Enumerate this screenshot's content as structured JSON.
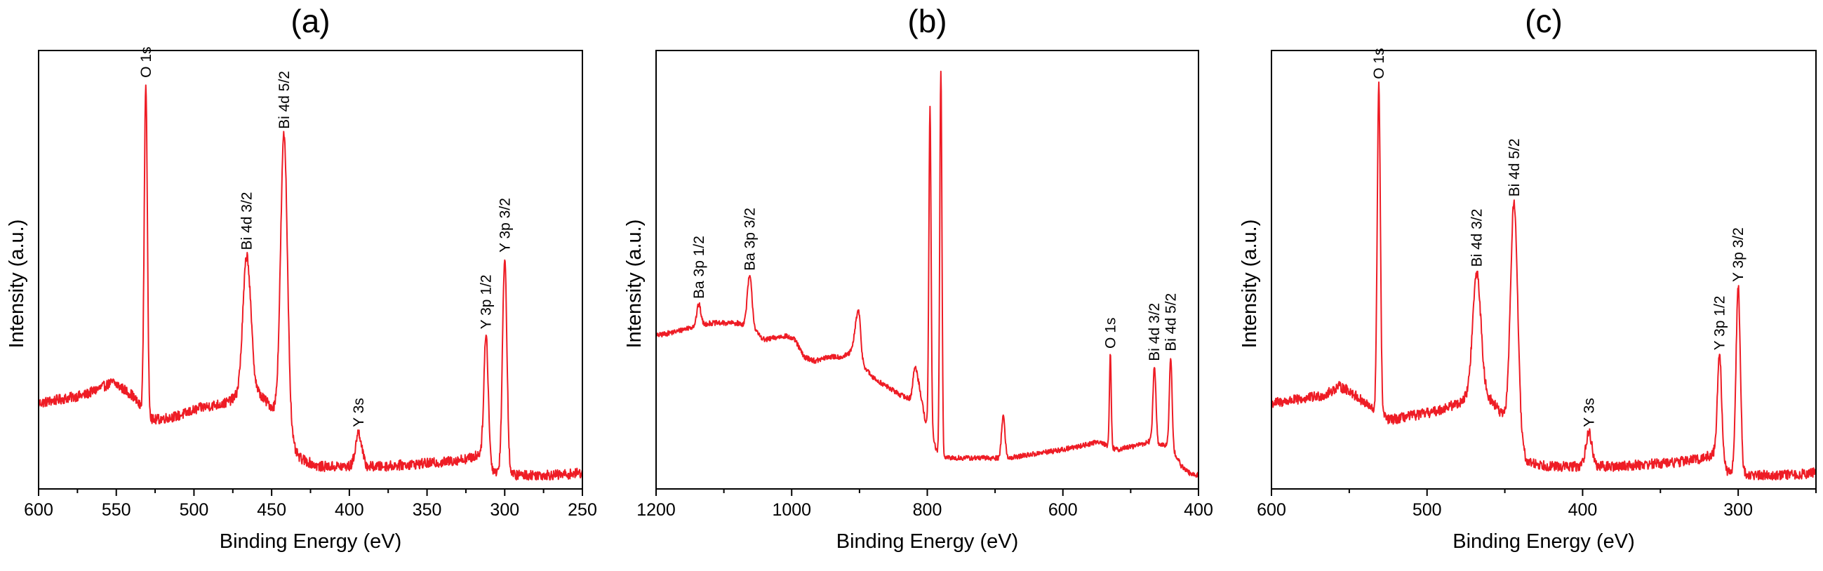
{
  "chart_data": [
    {
      "type": "line",
      "title": "(a)",
      "xlabel": "Binding Energy (eV)",
      "ylabel": "Intensity (a.u.)",
      "xlim": [
        600,
        250
      ],
      "ylim": [
        0,
        100
      ],
      "x_ticks": [
        "600",
        "550",
        "500",
        "450",
        "400",
        "350",
        "300",
        "250"
      ],
      "x_tick_values": [
        600,
        550,
        500,
        450,
        400,
        350,
        300,
        250
      ],
      "line_color": "#ee1c25",
      "baseline": [
        {
          "x": 600,
          "y": 18
        },
        {
          "x": 585,
          "y": 19
        },
        {
          "x": 570,
          "y": 20
        },
        {
          "x": 558,
          "y": 22
        },
        {
          "x": 552,
          "y": 23
        },
        {
          "x": 540,
          "y": 20
        },
        {
          "x": 534,
          "y": 17
        },
        {
          "x": 526,
          "y": 14
        },
        {
          "x": 510,
          "y": 15
        },
        {
          "x": 495,
          "y": 17
        },
        {
          "x": 480,
          "y": 18
        },
        {
          "x": 470,
          "y": 20
        },
        {
          "x": 462,
          "y": 22
        },
        {
          "x": 455,
          "y": 19
        },
        {
          "x": 447,
          "y": 16
        },
        {
          "x": 440,
          "y": 10
        },
        {
          "x": 432,
          "y": 5
        },
        {
          "x": 420,
          "y": 3
        },
        {
          "x": 405,
          "y": 3
        },
        {
          "x": 380,
          "y": 3
        },
        {
          "x": 360,
          "y": 3.5
        },
        {
          "x": 340,
          "y": 4
        },
        {
          "x": 322,
          "y": 5
        },
        {
          "x": 316,
          "y": 6
        },
        {
          "x": 307,
          "y": 2
        },
        {
          "x": 295,
          "y": 1
        },
        {
          "x": 280,
          "y": 1
        },
        {
          "x": 265,
          "y": 1
        },
        {
          "x": 250,
          "y": 1.5
        }
      ],
      "peaks": [
        {
          "label": "O 1s",
          "x": 531,
          "height": 78,
          "width": 1.0
        },
        {
          "label": "Bi 4d 3/2",
          "x": 466,
          "height": 32,
          "width": 2.5
        },
        {
          "label": "Bi 4d 5/2",
          "x": 442,
          "height": 70,
          "width": 2.2
        },
        {
          "label": "Y 3s",
          "x": 394,
          "height": 8,
          "width": 2.0
        },
        {
          "label": "Y 3p 1/2",
          "x": 312,
          "height": 30,
          "width": 1.4
        },
        {
          "label": "Y 3p 3/2",
          "x": 300,
          "height": 51,
          "width": 1.4
        }
      ],
      "noise": 1.2
    },
    {
      "type": "line",
      "title": "(b)",
      "xlabel": "Binding Energy (eV)",
      "ylabel": "Intensity (a.u.)",
      "xlim": [
        1200,
        400
      ],
      "ylim": [
        0,
        100
      ],
      "x_ticks": [
        "1200",
        "1000",
        "800",
        "600",
        "400"
      ],
      "x_tick_values": [
        1200,
        1000,
        800,
        600,
        400
      ],
      "line_color": "#ee1c25",
      "baseline": [
        {
          "x": 1200,
          "y": 34
        },
        {
          "x": 1170,
          "y": 35
        },
        {
          "x": 1150,
          "y": 36
        },
        {
          "x": 1120,
          "y": 37
        },
        {
          "x": 1080,
          "y": 37
        },
        {
          "x": 1060,
          "y": 36
        },
        {
          "x": 1040,
          "y": 33
        },
        {
          "x": 1010,
          "y": 34
        },
        {
          "x": 995,
          "y": 33
        },
        {
          "x": 982,
          "y": 29
        },
        {
          "x": 965,
          "y": 28
        },
        {
          "x": 945,
          "y": 29
        },
        {
          "x": 925,
          "y": 29
        },
        {
          "x": 912,
          "y": 30
        },
        {
          "x": 895,
          "y": 27
        },
        {
          "x": 880,
          "y": 24
        },
        {
          "x": 860,
          "y": 22
        },
        {
          "x": 840,
          "y": 20
        },
        {
          "x": 825,
          "y": 19
        },
        {
          "x": 812,
          "y": 22
        },
        {
          "x": 803,
          "y": 14
        },
        {
          "x": 796,
          "y": 12
        },
        {
          "x": 790,
          "y": 9
        },
        {
          "x": 785,
          "y": 6
        },
        {
          "x": 778,
          "y": 5
        },
        {
          "x": 750,
          "y": 5
        },
        {
          "x": 720,
          "y": 5
        },
        {
          "x": 680,
          "y": 5
        },
        {
          "x": 640,
          "y": 6
        },
        {
          "x": 600,
          "y": 7
        },
        {
          "x": 570,
          "y": 8
        },
        {
          "x": 545,
          "y": 9
        },
        {
          "x": 536,
          "y": 8
        },
        {
          "x": 520,
          "y": 7
        },
        {
          "x": 490,
          "y": 8
        },
        {
          "x": 470,
          "y": 9
        },
        {
          "x": 455,
          "y": 8
        },
        {
          "x": 441,
          "y": 8
        },
        {
          "x": 425,
          "y": 3
        },
        {
          "x": 410,
          "y": 1
        },
        {
          "x": 400,
          "y": 1
        }
      ],
      "peaks": [
        {
          "label": "Ba 3p 1/2",
          "x": 1137,
          "height": 5,
          "width": 3.0
        },
        {
          "label": "Ba 3p 3/2",
          "x": 1062,
          "height": 12,
          "width": 3.5
        },
        {
          "label": "",
          "x": 903,
          "height": 10,
          "width": 4.0
        },
        {
          "label": "",
          "x": 900,
          "height": 3,
          "width": 2.0
        },
        {
          "label": "",
          "x": 818,
          "height": 6,
          "width": 3.0
        },
        {
          "label": "",
          "x": 796,
          "height": 76,
          "width": 1.6
        },
        {
          "label": "",
          "x": 780,
          "height": 92,
          "width": 1.6
        },
        {
          "label": "",
          "x": 688,
          "height": 10,
          "width": 2.5
        },
        {
          "label": "O 1s",
          "x": 530,
          "height": 22,
          "width": 1.3
        },
        {
          "label": "Bi 4d 3/2",
          "x": 465,
          "height": 18,
          "width": 2.2
        },
        {
          "label": "Bi 4d 5/2",
          "x": 441,
          "height": 21,
          "width": 2.0
        }
      ],
      "noise": 0.6
    },
    {
      "type": "line",
      "title": "(c)",
      "xlabel": "Binding Energy (eV)",
      "ylabel": "Intensity (a.u.)",
      "xlim": [
        600,
        250
      ],
      "ylim": [
        0,
        100
      ],
      "x_ticks": [
        "600",
        "500",
        "400",
        "300"
      ],
      "x_tick_values": [
        600,
        500,
        400,
        300
      ],
      "line_color": "#ee1c25",
      "baseline": [
        {
          "x": 600,
          "y": 18
        },
        {
          "x": 580,
          "y": 19
        },
        {
          "x": 565,
          "y": 20
        },
        {
          "x": 557,
          "y": 22
        },
        {
          "x": 550,
          "y": 21
        },
        {
          "x": 540,
          "y": 18
        },
        {
          "x": 533,
          "y": 16
        },
        {
          "x": 524,
          "y": 14
        },
        {
          "x": 510,
          "y": 15
        },
        {
          "x": 495,
          "y": 16
        },
        {
          "x": 480,
          "y": 18
        },
        {
          "x": 472,
          "y": 20
        },
        {
          "x": 462,
          "y": 20
        },
        {
          "x": 455,
          "y": 17
        },
        {
          "x": 448,
          "y": 13
        },
        {
          "x": 442,
          "y": 8
        },
        {
          "x": 435,
          "y": 4
        },
        {
          "x": 420,
          "y": 3
        },
        {
          "x": 405,
          "y": 3
        },
        {
          "x": 380,
          "y": 3
        },
        {
          "x": 360,
          "y": 3.5
        },
        {
          "x": 340,
          "y": 4
        },
        {
          "x": 322,
          "y": 5
        },
        {
          "x": 316,
          "y": 6
        },
        {
          "x": 307,
          "y": 2
        },
        {
          "x": 295,
          "y": 1
        },
        {
          "x": 280,
          "y": 1
        },
        {
          "x": 265,
          "y": 1
        },
        {
          "x": 250,
          "y": 1.5
        }
      ],
      "peaks": [
        {
          "label": "O 1s",
          "x": 531,
          "height": 78,
          "width": 1.0
        },
        {
          "label": "Bi 4d 3/2",
          "x": 468,
          "height": 29,
          "width": 2.6
        },
        {
          "label": "Bi 4d 5/2",
          "x": 444,
          "height": 56,
          "width": 2.3
        },
        {
          "label": "Y 3s",
          "x": 396,
          "height": 8,
          "width": 2.0
        },
        {
          "label": "Y 3p 1/2",
          "x": 312,
          "height": 25,
          "width": 1.4
        },
        {
          "label": "Y 3p 3/2",
          "x": 300,
          "height": 44,
          "width": 1.4
        }
      ],
      "noise": 1.2
    }
  ]
}
